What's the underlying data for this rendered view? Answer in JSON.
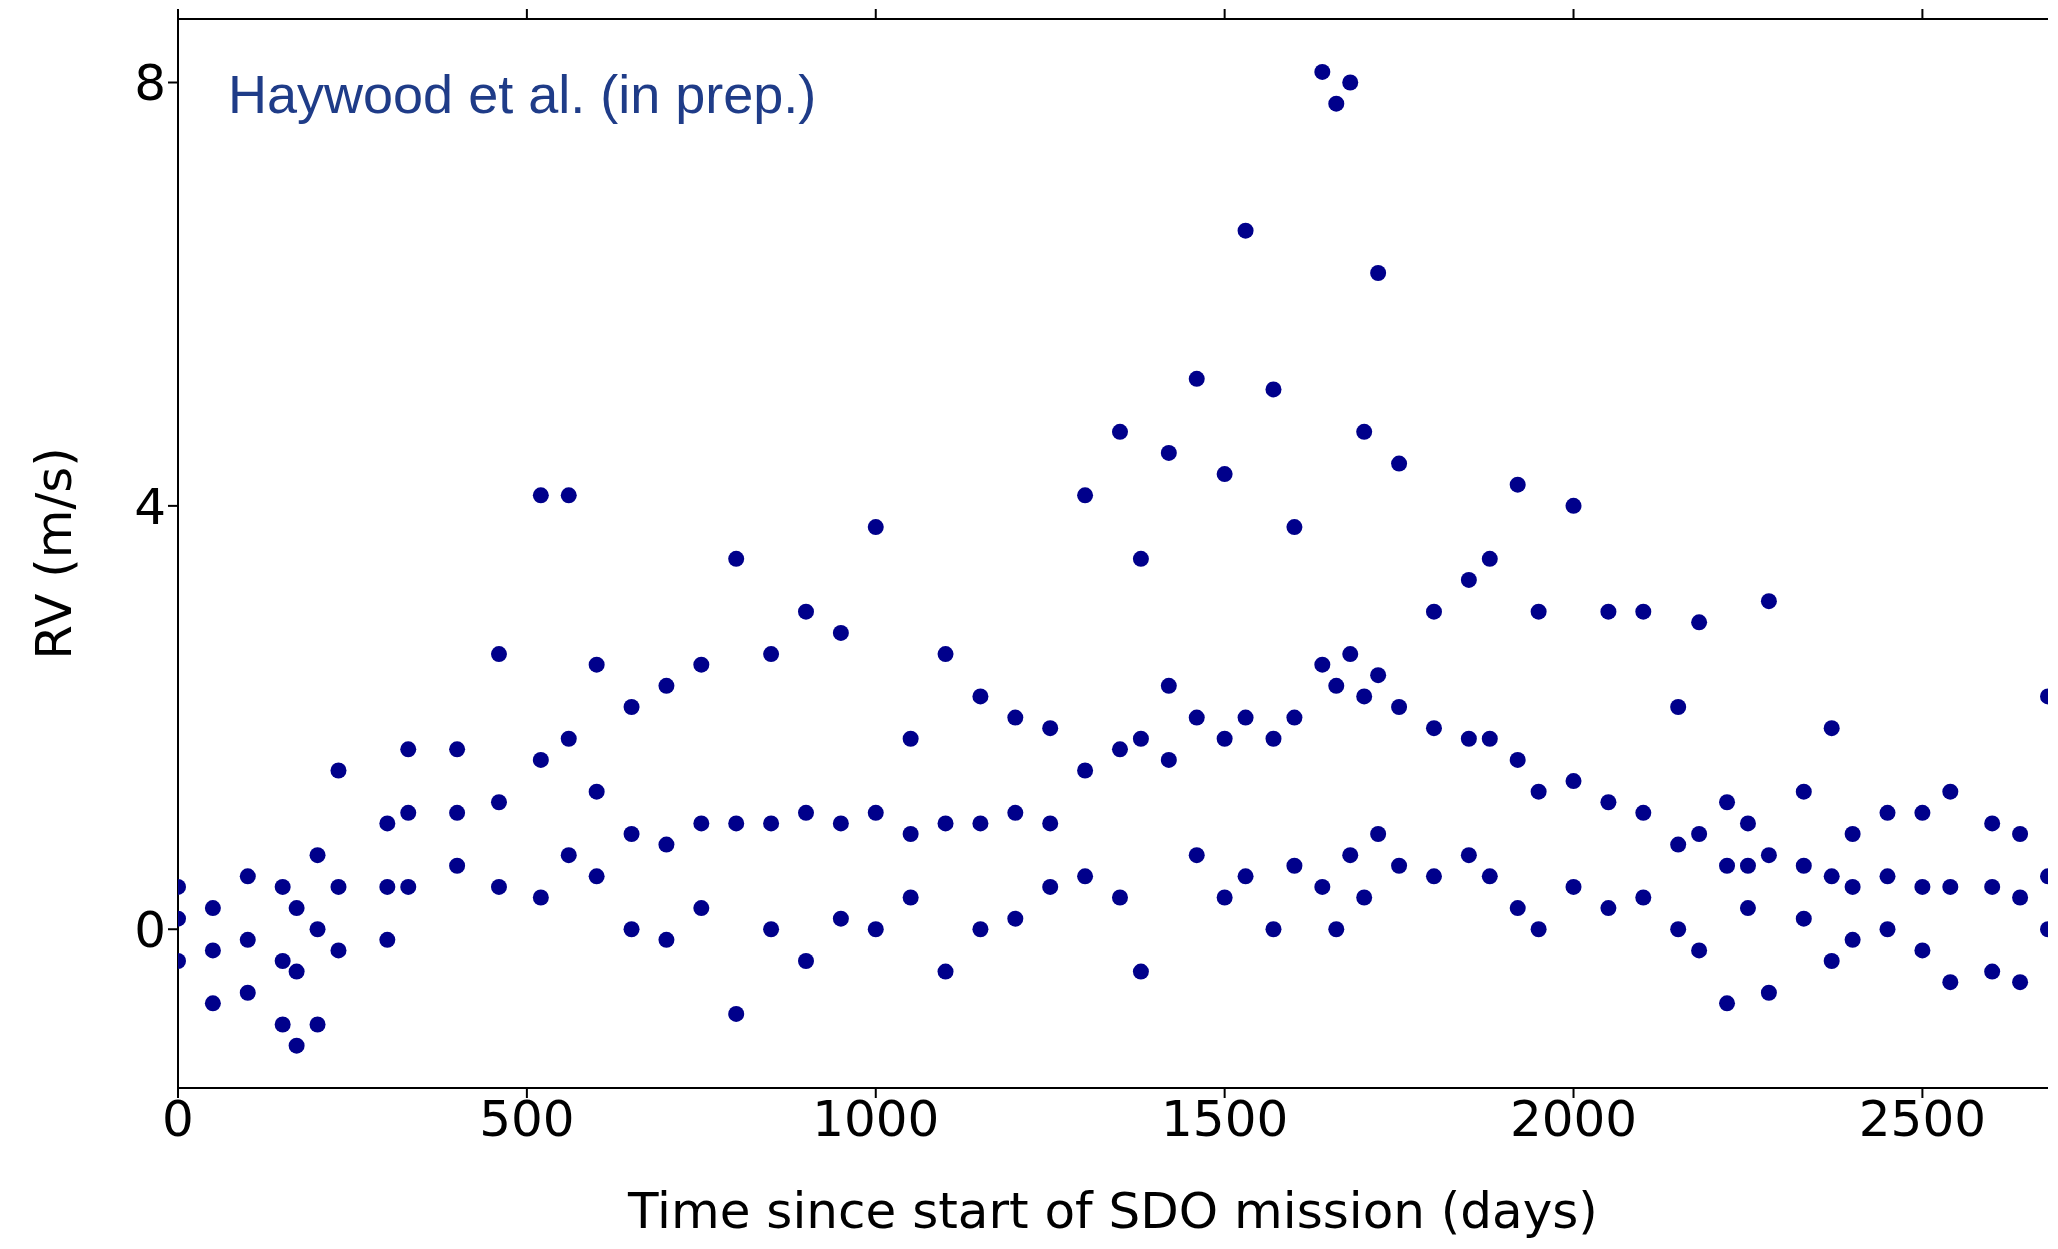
{
  "chart_data": {
    "type": "scatter",
    "xlabel": "Time since start of SDO mission (days)",
    "ylabel": "RV (m/s)",
    "annotations": [
      "Haywood et al. (in prep.)"
    ],
    "xlim": [
      0,
      2680
    ],
    "ylim": [
      -1.5,
      8.6
    ],
    "xticks": [
      0,
      500,
      1000,
      1500,
      2000,
      2500
    ],
    "yticks": [
      0,
      4,
      8
    ],
    "grid": false,
    "legend": false,
    "marker": "circle",
    "series": [
      {
        "color": "#00008b",
        "x": [
          0,
          0,
          0,
          50,
          50,
          50,
          100,
          100,
          100,
          150,
          150,
          150,
          170,
          170,
          170,
          200,
          200,
          200,
          230,
          230,
          230,
          300,
          300,
          300,
          330,
          330,
          330,
          400,
          400,
          400,
          460,
          460,
          460,
          520,
          520,
          520,
          560,
          560,
          560,
          600,
          600,
          600,
          650,
          650,
          650,
          700,
          700,
          700,
          750,
          750,
          750,
          800,
          800,
          800,
          850,
          850,
          850,
          900,
          900,
          900,
          950,
          950,
          950,
          1000,
          1000,
          1000,
          1050,
          1050,
          1050,
          1100,
          1100,
          1100,
          1150,
          1150,
          1150,
          1200,
          1200,
          1200,
          1250,
          1250,
          1250,
          1300,
          1300,
          1300,
          1350,
          1350,
          1350,
          1380,
          1380,
          1380,
          1420,
          1420,
          1420,
          1460,
          1460,
          1460,
          1500,
          1500,
          1500,
          1530,
          1530,
          1530,
          1570,
          1570,
          1570,
          1600,
          1600,
          1600,
          1640,
          1640,
          1640,
          1660,
          1660,
          1660,
          1680,
          1680,
          1680,
          1700,
          1700,
          1700,
          1720,
          1720,
          1720,
          1750,
          1750,
          1750,
          1800,
          1800,
          1800,
          1850,
          1850,
          1850,
          1880,
          1880,
          1880,
          1920,
          1920,
          1920,
          1950,
          1950,
          1950,
          2000,
          2000,
          2000,
          2050,
          2050,
          2050,
          2100,
          2100,
          2100,
          2150,
          2150,
          2150,
          2180,
          2180,
          2180,
          2220,
          2220,
          2220,
          2250,
          2250,
          2250,
          2280,
          2280,
          2280,
          2330,
          2330,
          2330,
          2370,
          2370,
          2370,
          2400,
          2400,
          2400,
          2450,
          2450,
          2450,
          2500,
          2500,
          2500,
          2540,
          2540,
          2540,
          2600,
          2600,
          2600,
          2640,
          2640,
          2640,
          2680,
          2680,
          2680
        ],
        "values": [
          0.4,
          0.1,
          -0.3,
          0.2,
          -0.2,
          -0.7,
          0.5,
          -0.1,
          -0.6,
          0.4,
          -0.3,
          -0.9,
          0.2,
          -0.4,
          -1.1,
          0.7,
          0.0,
          -0.9,
          1.5,
          0.4,
          -0.2,
          1.0,
          0.4,
          -0.1,
          1.7,
          1.1,
          0.4,
          1.7,
          1.1,
          0.6,
          2.6,
          1.2,
          0.4,
          4.1,
          1.6,
          0.3,
          4.1,
          1.8,
          0.7,
          2.5,
          1.3,
          0.5,
          2.1,
          0.9,
          0.0,
          2.3,
          0.8,
          -0.1,
          2.5,
          1.0,
          0.2,
          3.5,
          1.0,
          -0.8,
          2.6,
          1.0,
          0.0,
          3.0,
          1.1,
          -0.3,
          2.8,
          1.0,
          0.1,
          3.8,
          1.1,
          0.0,
          1.8,
          0.9,
          0.3,
          2.6,
          1.0,
          -0.4,
          2.2,
          1.0,
          0.0,
          2.0,
          1.1,
          0.1,
          1.9,
          1.0,
          0.4,
          4.1,
          1.5,
          0.5,
          4.7,
          1.7,
          0.3,
          3.5,
          1.8,
          -0.4,
          4.5,
          2.3,
          1.6,
          5.2,
          2.0,
          0.7,
          4.3,
          1.8,
          0.3,
          6.6,
          2.0,
          0.5,
          5.1,
          1.8,
          0.0,
          3.8,
          2.0,
          0.6,
          8.1,
          2.5,
          0.4,
          7.8,
          2.3,
          0.0,
          8.0,
          2.6,
          0.7,
          4.7,
          2.2,
          0.3,
          6.2,
          2.4,
          0.9,
          4.4,
          2.1,
          0.6,
          3.0,
          1.9,
          0.5,
          3.3,
          1.8,
          0.7,
          3.5,
          1.8,
          0.5,
          4.2,
          1.6,
          0.2,
          3.0,
          1.3,
          0.0,
          4.0,
          1.4,
          0.4,
          3.0,
          1.2,
          0.2,
          3.0,
          1.1,
          0.3,
          2.1,
          0.8,
          0.0,
          2.9,
          0.9,
          -0.2,
          1.2,
          0.6,
          -0.7,
          1.0,
          0.6,
          0.2,
          3.1,
          0.7,
          -0.6,
          1.3,
          0.6,
          0.1,
          1.9,
          0.5,
          -0.3,
          0.9,
          0.4,
          -0.1,
          1.1,
          0.5,
          0.0,
          1.1,
          0.4,
          -0.2,
          1.3,
          0.4,
          -0.5,
          1.0,
          0.4,
          -0.4,
          0.9,
          0.3,
          -0.5,
          2.2,
          0.5,
          0.0
        ]
      }
    ]
  }
}
